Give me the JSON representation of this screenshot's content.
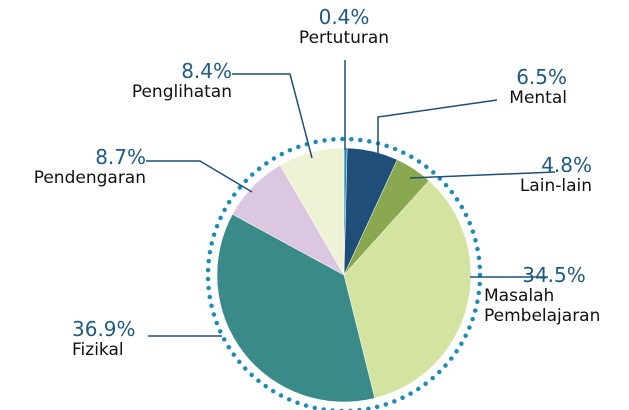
{
  "chart_data": {
    "type": "pie",
    "categories": [
      "Pertuturan",
      "Mental",
      "Lain-lain",
      "Masalah Pembelajaran",
      "Fizikal",
      "Pendengaran",
      "Penglihatan"
    ],
    "values": [
      0.4,
      6.5,
      4.8,
      34.5,
      36.9,
      8.7,
      8.4
    ],
    "value_labels": [
      "0.4%",
      "6.5%",
      "4.8%",
      "34.5%",
      "36.9%",
      "8.7%",
      "8.4%"
    ],
    "colors": [
      "#1b8bb8",
      "#1f4e79",
      "#8aa84f",
      "#d3e4a0",
      "#3a8a89",
      "#dcc7e1",
      "#eef3d5"
    ]
  }
}
